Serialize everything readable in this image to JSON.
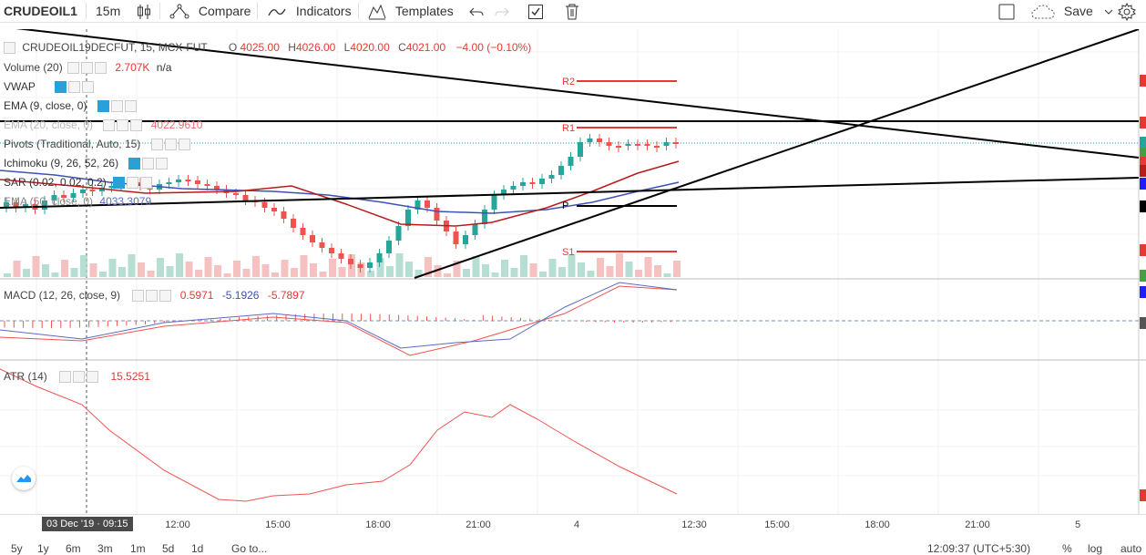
{
  "toolbar": {
    "symbol": "CRUDEOIL1",
    "interval": "15m",
    "compare": "Compare",
    "indicators": "Indicators",
    "templates": "Templates",
    "save": "Save"
  },
  "main_legend": {
    "symbol_line": "CRUDEOIL19DECFUT, 15, MCX-FUT",
    "open_label": "O",
    "open": "4025.00",
    "high_label": "H",
    "high": "4026.00",
    "low_label": "L",
    "low": "4020.00",
    "close_label": "C",
    "close": "4021.00",
    "change": "−4.00 (−0.10%)"
  },
  "studies": [
    {
      "name": "Volume (20)",
      "values": "2.707K",
      "extra": "n/a"
    },
    {
      "name": "VWAP",
      "values": ""
    },
    {
      "name": "EMA (9, close, 0)",
      "values": ""
    },
    {
      "name": "EMA (20, close, 0)",
      "values": "4022.9610"
    },
    {
      "name": "Pivots (Traditional, Auto, 15)",
      "values": ""
    },
    {
      "name": "Ichimoku (9, 26, 52, 26)",
      "values": ""
    },
    {
      "name": "SAR (0.02, 0.02, 0.2)",
      "values": ""
    },
    {
      "name": "EMA (50, close, 0)",
      "values": "4033.3079"
    }
  ],
  "pivots": {
    "r2": "R2",
    "r1": "R1",
    "p": "P",
    "s1": "S1"
  },
  "macd": {
    "name": "MACD (12, 26, close, 9)",
    "v1": "0.5971",
    "v2": "-5.1926",
    "v3": "-5.7897"
  },
  "atr": {
    "name": "ATR (14)",
    "value": "15.5251"
  },
  "xaxis": {
    "crosshair_date": "03 Dec '19 · 09:15",
    "ticks": [
      "12:00",
      "15:00",
      "18:00",
      "21:00",
      "4",
      "12:30",
      "15:00",
      "18:00",
      "21:00",
      "5"
    ]
  },
  "bottom": {
    "ranges": [
      "5y",
      "1y",
      "6m",
      "3m",
      "1m",
      "5d",
      "1d"
    ],
    "goto": "Go to...",
    "time": "12:09:37 (UTC+5:30)",
    "pct": "%",
    "log": "log",
    "auto": "auto"
  },
  "colors": {
    "up": "#26a69a",
    "down": "#ef5350",
    "ema20": "#b71c1c",
    "ema50": "#3f51b5",
    "pivot_r": "#e53935",
    "pivot_p": "#000000",
    "atr": "#ef5350"
  }
}
